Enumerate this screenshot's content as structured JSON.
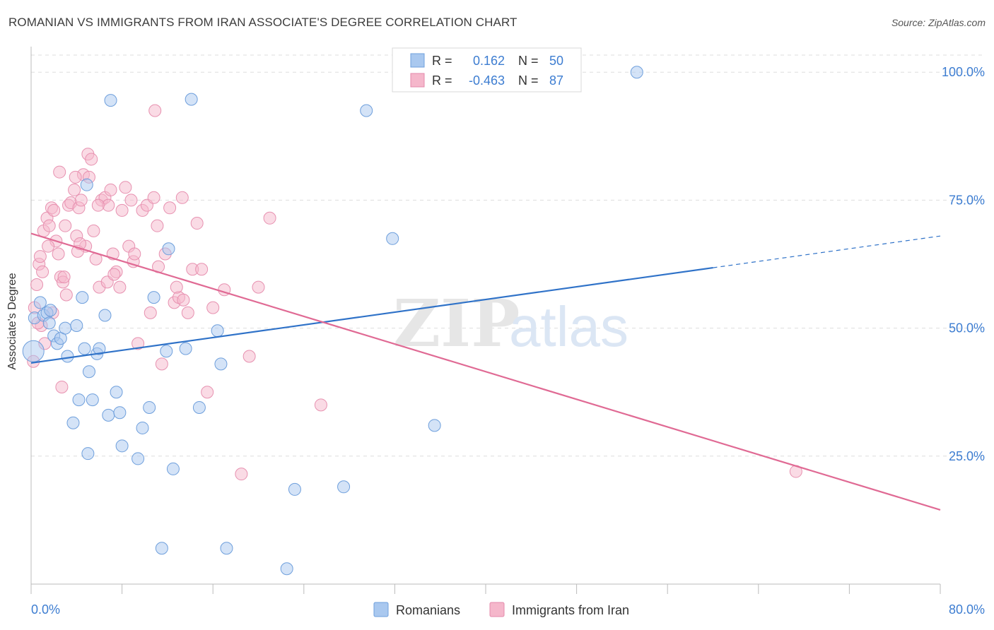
{
  "title": "ROMANIAN VS IMMIGRANTS FROM IRAN ASSOCIATE'S DEGREE CORRELATION CHART",
  "source": "Source: ZipAtlas.com",
  "watermark": {
    "zip": "ZIP",
    "atlas": "atlas"
  },
  "colors": {
    "romanians_fill": "#a9c8ef",
    "romanians_line": "#2f72c8",
    "iran_fill": "#f5b7cb",
    "iran_line": "#e06a94",
    "tick_label": "#3d7dd1",
    "grid": "#dddddd"
  },
  "legend_box": {
    "rows": [
      {
        "r_label": "R =",
        "r_value": "0.162",
        "n_label": "N =",
        "n_value": "50"
      },
      {
        "r_label": "R =",
        "r_value": "-0.463",
        "n_label": "N =",
        "n_value": "87"
      }
    ]
  },
  "chart_data": {
    "type": "scatter",
    "ylabel": "Associate's Degree",
    "xlabel": "",
    "xlim": [
      0,
      80
    ],
    "ylim": [
      0,
      105
    ],
    "x_tick_labels": [
      "0.0%",
      "80.0%"
    ],
    "y_ticks": [
      25,
      50,
      75,
      100
    ],
    "y_tick_labels": [
      "25.0%",
      "50.0%",
      "75.0%",
      "100.0%"
    ],
    "grid": true,
    "legend_position": "bottom",
    "series": [
      {
        "name": "Romanians",
        "points": [
          [
            0.2,
            45.5
          ],
          [
            0.3,
            52
          ],
          [
            0.8,
            55
          ],
          [
            1.1,
            52.5
          ],
          [
            1.4,
            53
          ],
          [
            1.6,
            51
          ],
          [
            2,
            48.5
          ],
          [
            2.3,
            47
          ],
          [
            2.6,
            48
          ],
          [
            3,
            50
          ],
          [
            3.2,
            44.5
          ],
          [
            4,
            50.5
          ],
          [
            4.2,
            36
          ],
          [
            4.5,
            56
          ],
          [
            4.7,
            46
          ],
          [
            5.1,
            41.5
          ],
          [
            5.4,
            36
          ],
          [
            5.8,
            45
          ],
          [
            6,
            46
          ],
          [
            6.5,
            52.5
          ],
          [
            6.8,
            33
          ],
          [
            7,
            94.5
          ],
          [
            7.5,
            37.5
          ],
          [
            7.8,
            33.5
          ],
          [
            8,
            27
          ],
          [
            9.4,
            24.5
          ],
          [
            9.8,
            30.5
          ],
          [
            10.4,
            34.5
          ],
          [
            10.8,
            56
          ],
          [
            11.9,
            45.5
          ],
          [
            12.1,
            65.5
          ],
          [
            12.5,
            22.5
          ],
          [
            13.6,
            46
          ],
          [
            14.1,
            94.7
          ],
          [
            14.8,
            34.5
          ],
          [
            16.4,
            49.5
          ],
          [
            16.7,
            43
          ],
          [
            17.2,
            7
          ],
          [
            23.2,
            18.5
          ],
          [
            22.5,
            3
          ],
          [
            27.5,
            19
          ],
          [
            29.5,
            92.5
          ],
          [
            31.8,
            67.5
          ],
          [
            35.5,
            31
          ],
          [
            53.3,
            100
          ],
          [
            4.9,
            78
          ],
          [
            3.7,
            31.5
          ],
          [
            5,
            25.5
          ],
          [
            1.7,
            53.5
          ],
          [
            11.5,
            7
          ]
        ]
      },
      {
        "name": "Immigrants from Iran",
        "points": [
          [
            0.2,
            43.5
          ],
          [
            0.3,
            54
          ],
          [
            0.5,
            58.5
          ],
          [
            0.7,
            62.5
          ],
          [
            0.8,
            64
          ],
          [
            1,
            61
          ],
          [
            1.1,
            69
          ],
          [
            1.4,
            71.5
          ],
          [
            1.6,
            70
          ],
          [
            1.8,
            73.5
          ],
          [
            2,
            73
          ],
          [
            2.2,
            67
          ],
          [
            2.4,
            64.5
          ],
          [
            2.6,
            60
          ],
          [
            2.8,
            59
          ],
          [
            3,
            70
          ],
          [
            3.3,
            74
          ],
          [
            3.5,
            74.5
          ],
          [
            3.8,
            77
          ],
          [
            4,
            68
          ],
          [
            4.2,
            73.5
          ],
          [
            4.4,
            75
          ],
          [
            4.6,
            80
          ],
          [
            4.8,
            66
          ],
          [
            5,
            84
          ],
          [
            5.3,
            83
          ],
          [
            5.5,
            69
          ],
          [
            5.7,
            63.5
          ],
          [
            6,
            58
          ],
          [
            6.2,
            75
          ],
          [
            6.5,
            75.5
          ],
          [
            6.8,
            74
          ],
          [
            7,
            77
          ],
          [
            7.2,
            64.5
          ],
          [
            7.5,
            61
          ],
          [
            7.8,
            58
          ],
          [
            8,
            73
          ],
          [
            8.3,
            77.5
          ],
          [
            8.6,
            66
          ],
          [
            9,
            63
          ],
          [
            9.4,
            47
          ],
          [
            9.8,
            73
          ],
          [
            10.2,
            74
          ],
          [
            10.5,
            53
          ],
          [
            10.8,
            75.5
          ],
          [
            11.2,
            62
          ],
          [
            11.5,
            43
          ],
          [
            11.8,
            64.5
          ],
          [
            12.2,
            73.5
          ],
          [
            12.6,
            55
          ],
          [
            13,
            56
          ],
          [
            13.4,
            55.5
          ],
          [
            13.8,
            53
          ],
          [
            14.2,
            61.5
          ],
          [
            14.6,
            70.5
          ],
          [
            15,
            61.5
          ],
          [
            15.5,
            37.5
          ],
          [
            16,
            54
          ],
          [
            17,
            57.5
          ],
          [
            18.5,
            21.5
          ],
          [
            19.2,
            44.5
          ],
          [
            20,
            58
          ],
          [
            21,
            71.5
          ],
          [
            25.5,
            35
          ],
          [
            67.3,
            22
          ],
          [
            2.7,
            38.5
          ],
          [
            3.1,
            56.5
          ],
          [
            1.9,
            53
          ],
          [
            1.2,
            47
          ],
          [
            0.9,
            50.5
          ],
          [
            4.1,
            65
          ],
          [
            5.9,
            74
          ],
          [
            6.7,
            59
          ],
          [
            10.9,
            92.5
          ],
          [
            9.1,
            64.5
          ],
          [
            8.8,
            75
          ],
          [
            13.3,
            75.5
          ],
          [
            2.5,
            80.5
          ],
          [
            3.9,
            79.5
          ],
          [
            1.5,
            66
          ],
          [
            7.3,
            60.5
          ],
          [
            2.9,
            60
          ],
          [
            4.3,
            66.5
          ],
          [
            11.1,
            70
          ],
          [
            12.8,
            58
          ],
          [
            0.6,
            51
          ],
          [
            5.1,
            79.5
          ]
        ]
      }
    ],
    "trendlines": [
      {
        "series": "Romanians",
        "x0": 0,
        "y0": 43.2,
        "x1": 60,
        "y1": 61.8,
        "dashed_to_x": 80,
        "dashed_to_y": 68
      },
      {
        "series": "Immigrants from Iran",
        "x0": 0,
        "y0": 68.5,
        "x1": 80,
        "y1": 14.5
      }
    ]
  },
  "bottom_legend": [
    "Romanians",
    "Immigrants from Iran"
  ]
}
